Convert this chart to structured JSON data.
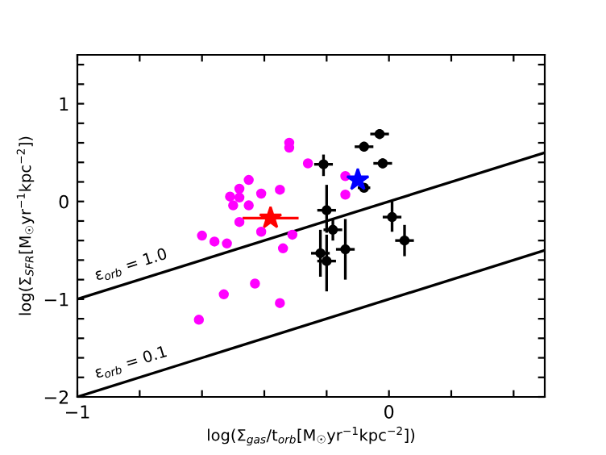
{
  "chart_data": {
    "type": "scatter",
    "xlabel": "log(Σ$_{gas}$/t$_{orb}$[M$_{☉}$yr$^{−1}$kpc$^{−2}$])",
    "ylabel": "log(Σ$_{SFR}$[M$_{☉}$yr$^{−1}$kpc$^{−2}$])",
    "xlim": [
      -1,
      0.5
    ],
    "ylim": [
      -2,
      1.5
    ],
    "xticks": [
      -1,
      {
        "value": -0.8,
        "label": null
      },
      {
        "value": -0.6,
        "label": null
      },
      {
        "value": -0.4,
        "label": null
      },
      {
        "value": -0.2,
        "label": null
      },
      0,
      {
        "value": 0.2,
        "label": null
      },
      {
        "value": 0.4,
        "label": null
      }
    ],
    "yticks": [
      -2,
      {
        "value": -1.8,
        "label": null
      },
      {
        "value": -1.6,
        "label": null
      },
      {
        "value": -1.4,
        "label": null
      },
      {
        "value": -1.2,
        "label": null
      },
      -1,
      {
        "value": -0.8,
        "label": null
      },
      {
        "value": -0.6,
        "label": null
      },
      {
        "value": -0.4,
        "label": null
      },
      {
        "value": -0.2,
        "label": null
      },
      0,
      {
        "value": 0.2,
        "label": null
      },
      {
        "value": 0.4,
        "label": null
      },
      {
        "value": 0.6,
        "label": null
      },
      {
        "value": 0.8,
        "label": null
      },
      1,
      {
        "value": 1.2,
        "label": null
      },
      {
        "value": 1.4,
        "label": null
      }
    ],
    "grid": false,
    "series": [
      {
        "type": "line",
        "name": "ε$_{orb}$ = 1.0",
        "color": "#000000",
        "x": [
          -1,
          0.5
        ],
        "values": [
          -1,
          0.5
        ],
        "marker": "none"
      },
      {
        "type": "line",
        "name": "ε$_{orb}$ = 0.1",
        "color": "#000000",
        "x": [
          -1,
          0.5
        ],
        "values": [
          -2,
          -0.5
        ],
        "marker": "none"
      },
      {
        "color": "#ff00ff",
        "marker": "circle",
        "x": [
          -0.32,
          -0.32,
          -0.26,
          -0.45,
          -0.48,
          -0.51,
          -0.48,
          -0.41,
          -0.35,
          -0.5,
          -0.45,
          -0.48,
          -0.41,
          -0.6,
          -0.56,
          -0.52,
          -0.34,
          -0.31,
          -0.14,
          -0.14,
          -0.43,
          -0.35,
          -0.53,
          -0.61
        ],
        "values": [
          0.6,
          0.55,
          0.39,
          0.22,
          0.13,
          0.05,
          0.04,
          0.08,
          0.12,
          -0.04,
          -0.04,
          -0.21,
          -0.31,
          -0.35,
          -0.41,
          -0.43,
          -0.48,
          -0.34,
          0.26,
          0.07,
          -0.84,
          -1.04,
          -0.95,
          -1.21
        ]
      },
      {
        "color": "#000000",
        "marker": "circle",
        "x": [
          -0.03,
          -0.08,
          -0.02,
          -0.21,
          -0.08,
          -0.2,
          -0.18,
          -0.14,
          -0.22,
          -0.2,
          0.01,
          0.05
        ],
        "values": [
          0.69,
          0.56,
          0.39,
          0.38,
          0.14,
          -0.09,
          -0.29,
          -0.49,
          -0.53,
          -0.61,
          -0.16,
          -0.4
        ],
        "errors": [
          0.05,
          0.05,
          0.05,
          [
            0.26,
            0.48
          ],
          null,
          [
            -0.32,
            0.17
          ],
          [
            -0.4,
            -0.18
          ],
          [
            -0.8,
            -0.18
          ],
          [
            -0.77,
            -0.29
          ],
          [
            -0.92,
            -0.34
          ],
          [
            -0.31,
            0.0
          ],
          [
            -0.56,
            -0.24
          ]
        ],
        "xerrors": [
          0.03,
          0.03,
          0.03,
          0.03,
          0.02,
          0.03,
          0.03,
          0.03,
          0.03,
          0.03,
          0.03,
          0.03
        ]
      },
      {
        "color": "#ff0000",
        "marker": "star",
        "x": [
          -0.38
        ],
        "values": [
          -0.17
        ],
        "xerrors": [
          0.09
        ]
      },
      {
        "color": "#0000ff",
        "marker": "star",
        "x": [
          -0.1
        ],
        "values": [
          0.22
        ]
      }
    ]
  }
}
